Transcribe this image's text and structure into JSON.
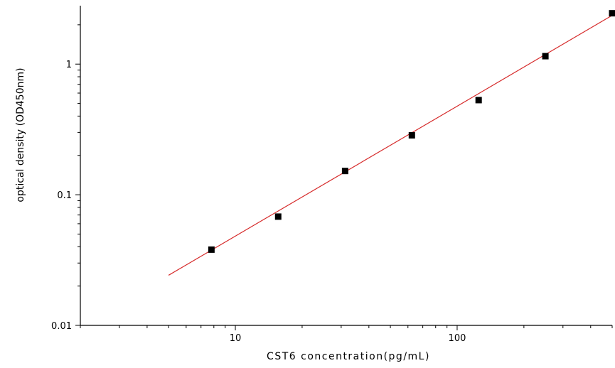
{
  "chart_data": {
    "type": "scatter",
    "xlabel": "CST6  concentration(pg/mL)",
    "ylabel": "optical density (OD450nm)",
    "x_scale": "log",
    "y_scale": "log",
    "xlim": [
      2,
      500
    ],
    "ylim": [
      0.01,
      2.8
    ],
    "x_ticks": [
      10,
      100
    ],
    "x_tick_labels": [
      "10",
      "100"
    ],
    "y_ticks": [
      0.01,
      0.1,
      1
    ],
    "y_tick_labels": [
      "0.01",
      "0.1",
      "1"
    ],
    "grid": false,
    "legend": "none",
    "points": {
      "x": [
        7.8,
        15.6,
        31.25,
        62.5,
        125,
        250,
        500
      ],
      "y": [
        0.038,
        0.068,
        0.152,
        0.285,
        0.53,
        1.15,
        2.45
      ]
    },
    "fit_line": {
      "x": [
        5,
        500
      ],
      "y": [
        0.0242,
        2.36
      ]
    },
    "colors": {
      "points": "#000000",
      "fit_line": "#d62a2a",
      "axes": "#000000"
    }
  }
}
